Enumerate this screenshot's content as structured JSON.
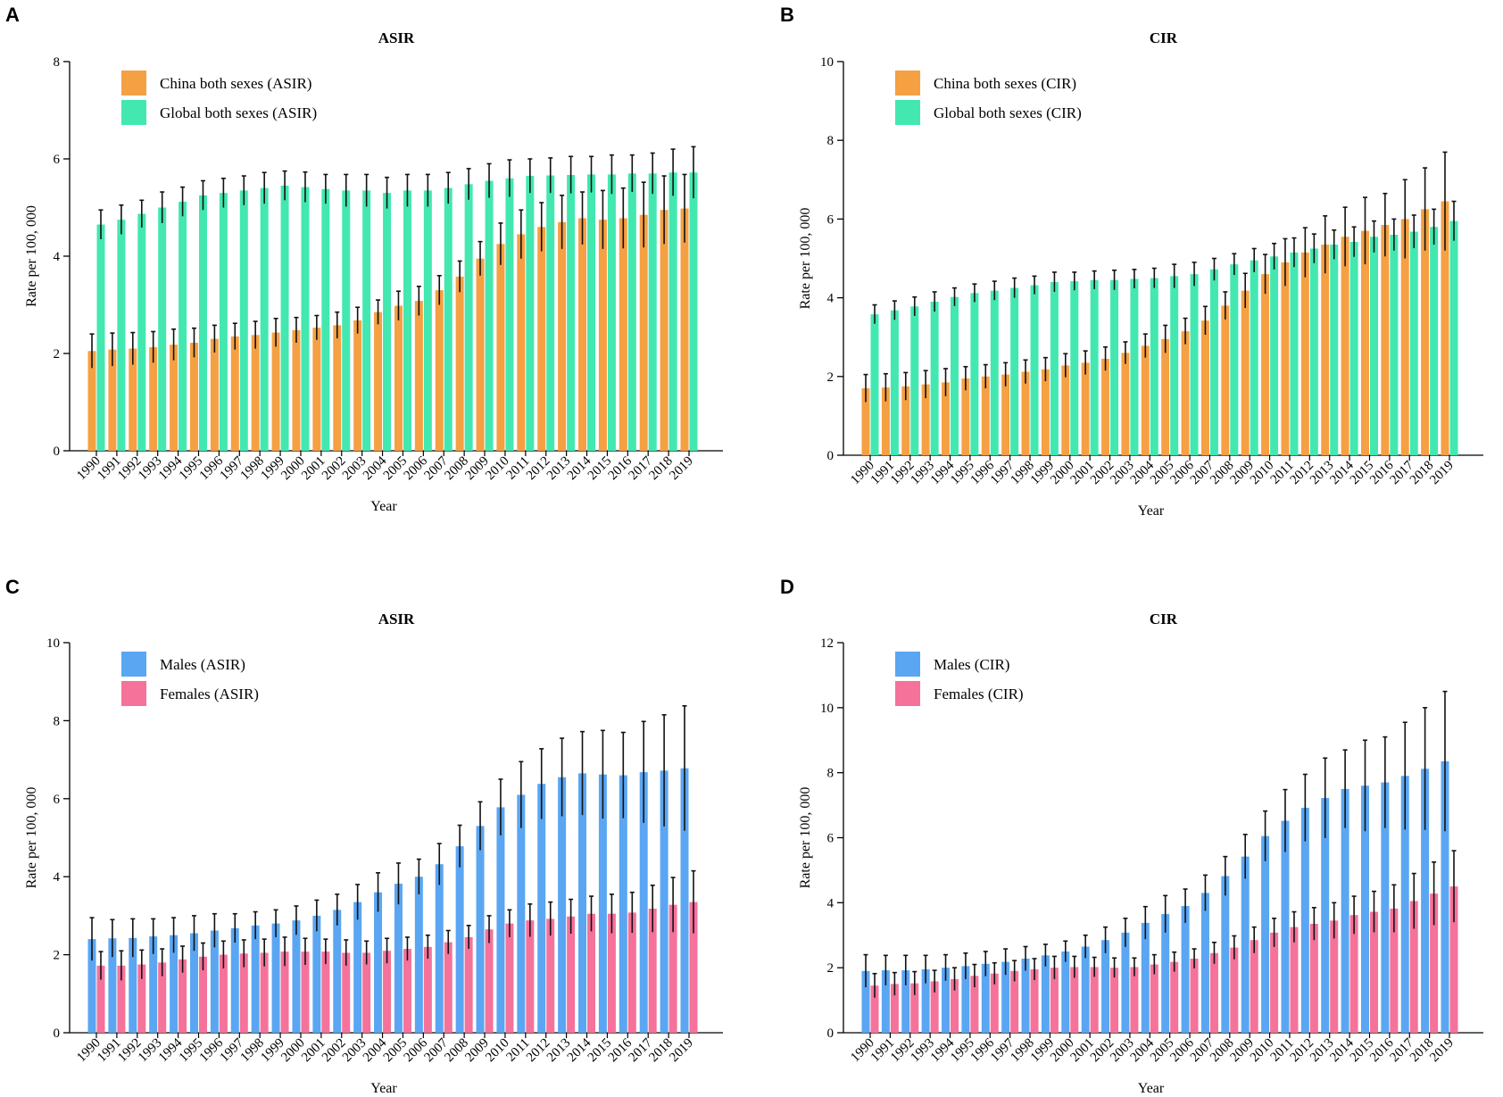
{
  "chart_data": [
    {
      "panel": "A",
      "type": "bar",
      "title": "ASIR",
      "xlabel": "Year",
      "ylabel": "Rate per 100, 000",
      "ylim": [
        0,
        8
      ],
      "yticks": [
        0,
        2,
        4,
        6,
        8
      ],
      "legend_position": "top-left",
      "categories": [
        "1990",
        "1991",
        "1992",
        "1993",
        "1994",
        "1995",
        "1996",
        "1997",
        "1998",
        "1999",
        "2000",
        "2001",
        "2002",
        "2003",
        "2004",
        "2005",
        "2006",
        "2007",
        "2008",
        "2009",
        "2010",
        "2011",
        "2012",
        "2013",
        "2014",
        "2015",
        "2016",
        "2017",
        "2018",
        "2019"
      ],
      "series": [
        {
          "name": "China both sexes (ASIR)",
          "color": "#f5a043",
          "values": [
            2.05,
            2.08,
            2.1,
            2.13,
            2.18,
            2.22,
            2.3,
            2.35,
            2.38,
            2.43,
            2.48,
            2.53,
            2.58,
            2.68,
            2.85,
            2.98,
            3.08,
            3.3,
            3.58,
            3.95,
            4.25,
            4.45,
            4.6,
            4.7,
            4.78,
            4.75,
            4.78,
            4.85,
            4.95,
            4.98
          ],
          "upper": [
            2.4,
            2.42,
            2.43,
            2.45,
            2.5,
            2.52,
            2.58,
            2.62,
            2.66,
            2.72,
            2.74,
            2.78,
            2.85,
            2.95,
            3.1,
            3.28,
            3.38,
            3.6,
            3.9,
            4.3,
            4.68,
            4.95,
            5.1,
            5.25,
            5.32,
            5.35,
            5.4,
            5.52,
            5.65,
            5.68
          ],
          "lower": [
            1.7,
            1.74,
            1.77,
            1.81,
            1.86,
            1.92,
            2.02,
            2.08,
            2.1,
            2.14,
            2.22,
            2.28,
            2.31,
            2.41,
            2.6,
            2.68,
            2.78,
            3.0,
            3.26,
            3.6,
            3.82,
            3.95,
            4.1,
            4.15,
            4.24,
            4.15,
            4.16,
            4.18,
            4.25,
            4.28
          ]
        },
        {
          "name": "Global both sexes (ASIR)",
          "color": "#42e8b0",
          "values": [
            4.65,
            4.75,
            4.87,
            5.0,
            5.12,
            5.25,
            5.3,
            5.35,
            5.4,
            5.45,
            5.42,
            5.38,
            5.35,
            5.35,
            5.3,
            5.35,
            5.35,
            5.4,
            5.48,
            5.55,
            5.6,
            5.65,
            5.66,
            5.67,
            5.68,
            5.68,
            5.7,
            5.7,
            5.72,
            5.72
          ],
          "upper": [
            4.95,
            5.05,
            5.15,
            5.32,
            5.42,
            5.55,
            5.6,
            5.65,
            5.72,
            5.75,
            5.73,
            5.68,
            5.68,
            5.68,
            5.62,
            5.68,
            5.68,
            5.72,
            5.8,
            5.9,
            5.98,
            6.0,
            6.02,
            6.05,
            6.05,
            6.08,
            6.08,
            6.12,
            6.2,
            6.25
          ],
          "lower": [
            4.35,
            4.45,
            4.59,
            4.68,
            4.82,
            4.95,
            5.0,
            5.05,
            5.08,
            5.15,
            5.11,
            5.08,
            5.02,
            5.02,
            4.98,
            5.02,
            5.02,
            5.08,
            5.16,
            5.2,
            5.22,
            5.3,
            5.3,
            5.29,
            5.31,
            5.28,
            5.32,
            5.28,
            5.24,
            5.19
          ]
        }
      ]
    },
    {
      "panel": "B",
      "type": "bar",
      "title": "CIR",
      "xlabel": "Year",
      "ylabel": "Rate per 100, 000",
      "ylim": [
        0,
        10
      ],
      "yticks": [
        0,
        2,
        4,
        6,
        8,
        10
      ],
      "legend_position": "top-left",
      "categories": [
        "1990",
        "1991",
        "1992",
        "1993",
        "1994",
        "1995",
        "1996",
        "1997",
        "1998",
        "1999",
        "2000",
        "2001",
        "2002",
        "2003",
        "2004",
        "2005",
        "2006",
        "2007",
        "2008",
        "2009",
        "2010",
        "2011",
        "2012",
        "2013",
        "2014",
        "2015",
        "2016",
        "2017",
        "2018",
        "2019"
      ],
      "series": [
        {
          "name": "China both sexes (CIR)",
          "color": "#f5a043",
          "values": [
            1.7,
            1.72,
            1.75,
            1.8,
            1.85,
            1.95,
            2.0,
            2.05,
            2.12,
            2.18,
            2.28,
            2.35,
            2.45,
            2.6,
            2.78,
            2.95,
            3.15,
            3.42,
            3.8,
            4.18,
            4.6,
            4.9,
            5.15,
            5.35,
            5.55,
            5.7,
            5.85,
            6.0,
            6.25,
            6.45
          ],
          "upper": [
            2.05,
            2.07,
            2.1,
            2.15,
            2.2,
            2.25,
            2.3,
            2.35,
            2.42,
            2.48,
            2.58,
            2.65,
            2.75,
            2.88,
            3.08,
            3.3,
            3.48,
            3.78,
            4.15,
            4.62,
            5.1,
            5.5,
            5.78,
            6.08,
            6.3,
            6.55,
            6.65,
            7.0,
            7.3,
            7.7
          ],
          "lower": [
            1.35,
            1.37,
            1.4,
            1.45,
            1.5,
            1.65,
            1.7,
            1.75,
            1.82,
            1.88,
            1.98,
            2.05,
            2.15,
            2.32,
            2.48,
            2.6,
            2.82,
            3.06,
            3.45,
            3.74,
            4.1,
            4.3,
            4.52,
            4.62,
            4.8,
            4.85,
            5.05,
            5.0,
            5.2,
            5.2
          ]
        },
        {
          "name": "Global both sexes (CIR)",
          "color": "#42e8b0",
          "values": [
            3.58,
            3.68,
            3.78,
            3.9,
            4.02,
            4.12,
            4.18,
            4.25,
            4.32,
            4.4,
            4.42,
            4.45,
            4.45,
            4.48,
            4.5,
            4.55,
            4.6,
            4.72,
            4.85,
            4.95,
            5.05,
            5.15,
            5.25,
            5.35,
            5.42,
            5.55,
            5.6,
            5.68,
            5.8,
            5.95
          ],
          "upper": [
            3.82,
            3.92,
            4.02,
            4.15,
            4.25,
            4.35,
            4.42,
            4.5,
            4.55,
            4.65,
            4.65,
            4.68,
            4.7,
            4.72,
            4.75,
            4.85,
            4.9,
            5.0,
            5.12,
            5.25,
            5.38,
            5.52,
            5.62,
            5.72,
            5.8,
            5.95,
            6.0,
            6.1,
            6.25,
            6.45
          ],
          "lower": [
            3.34,
            3.44,
            3.54,
            3.65,
            3.79,
            3.89,
            3.94,
            4.0,
            4.09,
            4.15,
            4.19,
            4.22,
            4.2,
            4.24,
            4.25,
            4.25,
            4.3,
            4.44,
            4.58,
            4.65,
            4.72,
            4.78,
            4.88,
            4.98,
            5.04,
            5.15,
            5.2,
            5.26,
            5.35,
            5.45
          ]
        }
      ]
    },
    {
      "panel": "C",
      "type": "bar",
      "title": "ASIR",
      "xlabel": "Year",
      "ylabel": "Rate per 100, 000",
      "ylim": [
        0,
        10
      ],
      "yticks": [
        0,
        2,
        4,
        6,
        8,
        10
      ],
      "legend_position": "top-left",
      "categories": [
        "1990",
        "1991",
        "1992",
        "1993",
        "1994",
        "1995",
        "1996",
        "1997",
        "1998",
        "1999",
        "2000",
        "2001",
        "2002",
        "2003",
        "2004",
        "2005",
        "2006",
        "2007",
        "2008",
        "2009",
        "2010",
        "2011",
        "2012",
        "2013",
        "2014",
        "2015",
        "2016",
        "2017",
        "2018",
        "2019"
      ],
      "series": [
        {
          "name": "Males (ASIR)",
          "color": "#5aa6f2",
          "values": [
            2.4,
            2.42,
            2.43,
            2.47,
            2.5,
            2.55,
            2.62,
            2.68,
            2.75,
            2.8,
            2.88,
            3.0,
            3.15,
            3.35,
            3.6,
            3.82,
            4.0,
            4.32,
            4.78,
            5.3,
            5.78,
            6.1,
            6.38,
            6.55,
            6.65,
            6.62,
            6.6,
            6.68,
            6.72,
            6.78
          ],
          "upper": [
            2.95,
            2.9,
            2.92,
            2.92,
            2.95,
            3.0,
            3.05,
            3.05,
            3.1,
            3.15,
            3.25,
            3.4,
            3.55,
            3.8,
            4.1,
            4.35,
            4.45,
            4.85,
            5.32,
            5.92,
            6.5,
            6.95,
            7.28,
            7.55,
            7.72,
            7.75,
            7.7,
            7.98,
            8.15,
            8.38
          ],
          "lower": [
            1.85,
            1.94,
            1.94,
            2.02,
            2.05,
            2.1,
            2.19,
            2.31,
            2.4,
            2.45,
            2.51,
            2.6,
            2.75,
            2.9,
            3.1,
            3.29,
            3.55,
            3.79,
            4.24,
            4.68,
            5.06,
            5.25,
            5.48,
            5.55,
            5.58,
            5.49,
            5.5,
            5.38,
            5.29,
            5.18
          ]
        },
        {
          "name": "Females (ASIR)",
          "color": "#f5729a",
          "values": [
            1.72,
            1.72,
            1.75,
            1.8,
            1.88,
            1.95,
            2.0,
            2.03,
            2.05,
            2.08,
            2.08,
            2.08,
            2.05,
            2.05,
            2.1,
            2.15,
            2.2,
            2.32,
            2.45,
            2.65,
            2.8,
            2.88,
            2.92,
            2.98,
            3.05,
            3.05,
            3.08,
            3.18,
            3.28,
            3.35
          ],
          "upper": [
            2.08,
            2.1,
            2.12,
            2.15,
            2.22,
            2.3,
            2.35,
            2.38,
            2.4,
            2.45,
            2.42,
            2.4,
            2.38,
            2.35,
            2.42,
            2.45,
            2.5,
            2.62,
            2.75,
            3.0,
            3.15,
            3.3,
            3.35,
            3.42,
            3.5,
            3.55,
            3.6,
            3.78,
            3.98,
            4.15
          ],
          "lower": [
            1.36,
            1.34,
            1.38,
            1.45,
            1.54,
            1.6,
            1.65,
            1.68,
            1.7,
            1.71,
            1.74,
            1.76,
            1.72,
            1.75,
            1.78,
            1.85,
            1.9,
            2.02,
            2.15,
            2.3,
            2.45,
            2.46,
            2.49,
            2.54,
            2.6,
            2.55,
            2.56,
            2.58,
            2.58,
            2.55
          ]
        }
      ]
    },
    {
      "panel": "D",
      "type": "bar",
      "title": "CIR",
      "xlabel": "Year",
      "ylabel": "Rate per 100, 000",
      "ylim": [
        0,
        12
      ],
      "yticks": [
        0,
        2,
        4,
        6,
        8,
        10,
        12
      ],
      "legend_position": "top-left",
      "categories": [
        "1990",
        "1991",
        "1992",
        "1993",
        "1994",
        "1995",
        "1996",
        "1997",
        "1998",
        "1999",
        "2000",
        "2001",
        "2002",
        "2003",
        "2004",
        "2005",
        "2006",
        "2007",
        "2008",
        "2009",
        "2010",
        "2011",
        "2012",
        "2013",
        "2014",
        "2015",
        "2016",
        "2017",
        "2018",
        "2019"
      ],
      "series": [
        {
          "name": "Males (CIR)",
          "color": "#5aa6f2",
          "values": [
            1.9,
            1.92,
            1.92,
            1.95,
            2.0,
            2.05,
            2.12,
            2.18,
            2.28,
            2.38,
            2.5,
            2.65,
            2.85,
            3.08,
            3.38,
            3.65,
            3.9,
            4.3,
            4.82,
            5.42,
            6.05,
            6.52,
            6.92,
            7.22,
            7.5,
            7.6,
            7.7,
            7.9,
            8.12,
            8.35
          ],
          "upper": [
            2.4,
            2.38,
            2.38,
            2.38,
            2.4,
            2.45,
            2.5,
            2.58,
            2.65,
            2.72,
            2.82,
            3.0,
            3.25,
            3.52,
            3.88,
            4.22,
            4.42,
            4.85,
            5.42,
            6.1,
            6.82,
            7.48,
            7.95,
            8.45,
            8.7,
            9.0,
            9.1,
            9.55,
            10.0,
            10.5
          ],
          "lower": [
            1.4,
            1.46,
            1.46,
            1.52,
            1.6,
            1.65,
            1.74,
            1.78,
            1.91,
            2.04,
            2.18,
            2.3,
            2.45,
            2.64,
            2.88,
            3.08,
            3.38,
            3.75,
            4.22,
            4.74,
            5.28,
            5.56,
            5.89,
            5.99,
            6.3,
            6.2,
            6.3,
            6.25,
            6.24,
            6.2
          ]
        },
        {
          "name": "Females (CIR)",
          "color": "#f5729a",
          "values": [
            1.45,
            1.5,
            1.52,
            1.58,
            1.65,
            1.75,
            1.82,
            1.9,
            1.95,
            2.0,
            2.02,
            2.02,
            2.0,
            2.02,
            2.1,
            2.18,
            2.28,
            2.45,
            2.62,
            2.85,
            3.08,
            3.25,
            3.35,
            3.45,
            3.62,
            3.72,
            3.82,
            4.05,
            4.28,
            4.5
          ],
          "upper": [
            1.82,
            1.85,
            1.88,
            1.92,
            2.0,
            2.1,
            2.15,
            2.22,
            2.28,
            2.35,
            2.35,
            2.32,
            2.3,
            2.3,
            2.4,
            2.48,
            2.58,
            2.78,
            2.98,
            3.25,
            3.52,
            3.72,
            3.85,
            4.0,
            4.2,
            4.35,
            4.55,
            4.9,
            5.25,
            5.6
          ],
          "lower": [
            1.08,
            1.15,
            1.16,
            1.24,
            1.3,
            1.4,
            1.49,
            1.58,
            1.62,
            1.65,
            1.69,
            1.72,
            1.7,
            1.74,
            1.8,
            1.88,
            1.98,
            2.12,
            2.26,
            2.45,
            2.64,
            2.78,
            2.85,
            2.9,
            3.04,
            3.09,
            3.09,
            3.2,
            3.31,
            3.4
          ]
        }
      ]
    }
  ]
}
